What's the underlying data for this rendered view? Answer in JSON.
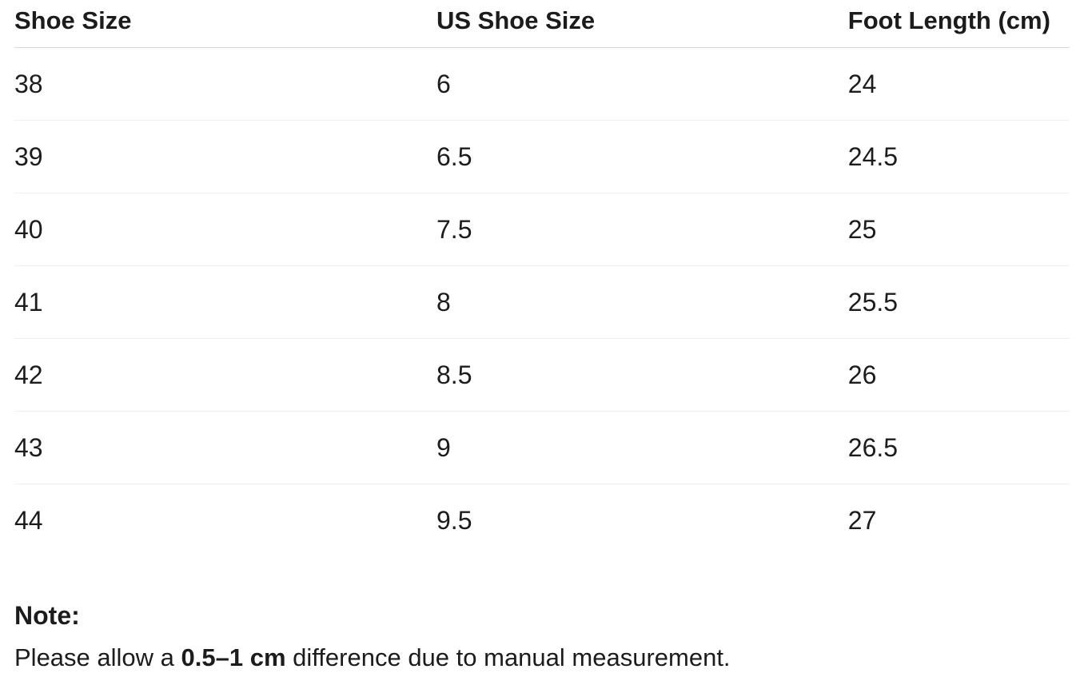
{
  "table": {
    "columns": [
      "Shoe Size",
      "US Shoe Size",
      "Foot Length (cm)"
    ],
    "rows": [
      [
        "38",
        "6",
        "24"
      ],
      [
        "39",
        "6.5",
        "24.5"
      ],
      [
        "40",
        "7.5",
        "25"
      ],
      [
        "41",
        "8",
        "25.5"
      ],
      [
        "42",
        "8.5",
        "26"
      ],
      [
        "43",
        "9",
        "26.5"
      ],
      [
        "44",
        "9.5",
        "27"
      ]
    ]
  },
  "note": {
    "title": "Note:",
    "text_prefix": "Please allow a ",
    "text_bold": "0.5–1 cm",
    "text_suffix": " difference due to manual measurement."
  },
  "colors": {
    "text": "#1c1c1e",
    "header_border": "#d8d8d8",
    "row_border": "#efefef",
    "background": "#ffffff"
  }
}
